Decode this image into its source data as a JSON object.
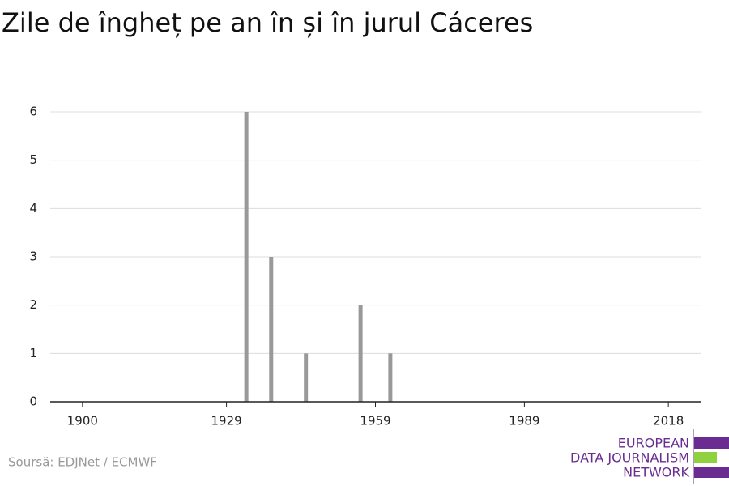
{
  "chart_data": {
    "type": "bar",
    "title": "Zile de îngheț pe an în și în jurul Cáceres",
    "x": [
      1933,
      1938,
      1945,
      1956,
      1962
    ],
    "values": [
      6,
      3,
      1,
      2,
      1
    ],
    "color": "#999999",
    "xlim": [
      1893.5,
      2024.5
    ],
    "xticks": [
      1900,
      1929,
      1959,
      1989,
      2018
    ],
    "ylim": [
      0,
      6
    ],
    "yticks": [
      0,
      1,
      2,
      3,
      4,
      5,
      6
    ],
    "grid": true,
    "source": "Soursă: EDJNet / ECMWF"
  },
  "logo": {
    "lines": [
      "EUROPEAN",
      "DATA JOURNALISM",
      "NETWORK"
    ]
  }
}
